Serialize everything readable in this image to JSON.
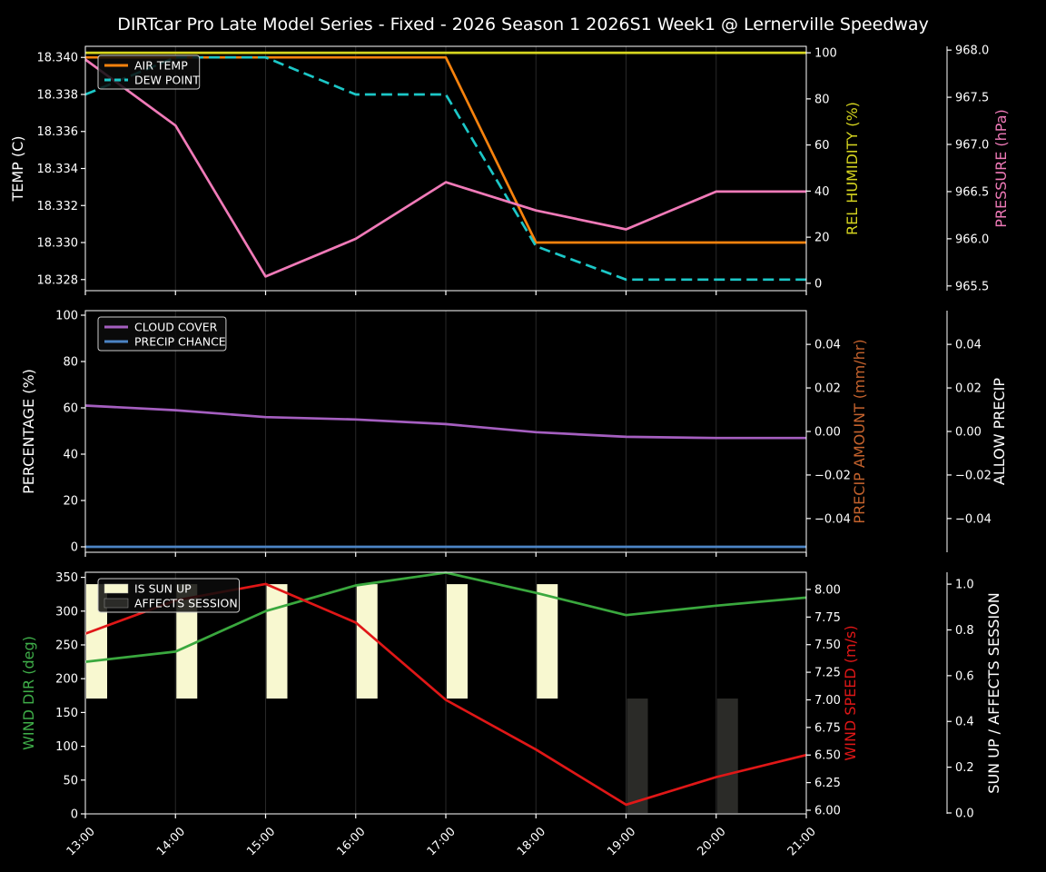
{
  "title": "DIRTcar Pro Late Model Series - Fixed - 2026 Season 1 2026S1 Week1 @ Lernerville Speedway",
  "colors": {
    "background": "#000000",
    "text": "#ffffff",
    "spine": "#ffffff",
    "grid": "#282828",
    "legend_bg": "rgba(12,12,12,0.85)",
    "legend_border": "#cccccc"
  },
  "x": {
    "hours": [
      13,
      14,
      15,
      16,
      17,
      18,
      19,
      20,
      21
    ],
    "tick_labels": [
      "13:00",
      "14:00",
      "15:00",
      "16:00",
      "17:00",
      "18:00",
      "19:00",
      "20:00",
      "21:00"
    ],
    "lim": [
      13,
      21
    ]
  },
  "chart_data": [
    {
      "id": "temperature-panel",
      "type": "line",
      "show_x_labels": false,
      "axes": {
        "left": {
          "label": "TEMP (C)",
          "label_color": "#ffffff",
          "lim": [
            18.3274,
            18.3406
          ],
          "ticks": [
            18.328,
            18.33,
            18.332,
            18.334,
            18.336,
            18.338,
            18.34
          ],
          "decimals": 3
        },
        "right": {
          "label": "REL HUMIDITY (%)",
          "label_color": "#d6d51f",
          "lim": [
            -3.2,
            102.8
          ],
          "ticks": [
            0,
            20,
            40,
            60,
            80,
            100
          ],
          "decimals": 0
        },
        "far": {
          "label": "PRESSURE (hPa)",
          "label_color": "#f07ab8",
          "lim": [
            965.45,
            968.04
          ],
          "ticks": [
            965.5,
            966.0,
            966.5,
            967.0,
            967.5,
            968.0
          ],
          "decimals": 1
        }
      },
      "series": [
        {
          "name": "AIR TEMP",
          "axis": "left",
          "color": "#f7820d",
          "dash": false,
          "visible": true,
          "values": [
            18.34,
            18.34,
            18.34,
            18.34,
            18.34,
            18.33,
            18.33,
            18.33,
            18.33
          ]
        },
        {
          "name": "DEW POINT",
          "axis": "left",
          "color": "#1cc7c7",
          "dash": true,
          "visible": true,
          "values": [
            18.338,
            18.34,
            18.34,
            18.338,
            18.338,
            18.3298,
            18.328,
            18.328,
            18.328
          ]
        },
        {
          "name": "REL HUMIDITY",
          "axis": "right",
          "color": "#d6d51f",
          "dash": false,
          "visible": true,
          "values": [
            100,
            100,
            100,
            100,
            100,
            100,
            100,
            100,
            100
          ]
        },
        {
          "name": "PRESSURE",
          "axis": "far",
          "color": "#f07ab8",
          "dash": false,
          "visible": true,
          "values": [
            967.9,
            967.2,
            965.6,
            966.0,
            966.6,
            966.3,
            966.1,
            966.5,
            966.5
          ]
        }
      ],
      "bars": [],
      "legend": [
        {
          "label": "AIR TEMP",
          "color": "#f7820d",
          "type": "line"
        },
        {
          "label": "DEW POINT",
          "color": "#1cc7c7",
          "type": "dash"
        }
      ]
    },
    {
      "id": "precipitation-panel",
      "type": "line",
      "show_x_labels": false,
      "axes": {
        "left": {
          "label": "PERCENTAGE (%)",
          "label_color": "#ffffff",
          "lim": [
            -2.35,
            101.96
          ],
          "ticks": [
            0,
            20,
            40,
            60,
            80,
            100
          ],
          "decimals": 0
        },
        "right": {
          "label": "PRECIP AMOUNT (mm/hr)",
          "label_color": "#c4622d",
          "lim": [
            -0.0555,
            0.0555
          ],
          "ticks": [
            0.04,
            0.02,
            0.0,
            -0.02,
            -0.04
          ],
          "decimals": 2
        },
        "far": {
          "label": "ALLOW PRECIP",
          "label_color": "#ffffff",
          "lim": [
            -0.0555,
            0.0555
          ],
          "ticks": [
            0.04,
            0.02,
            0.0,
            -0.02,
            -0.04
          ],
          "decimals": 2
        }
      },
      "series": [
        {
          "name": "CLOUD COVER",
          "axis": "left",
          "color": "#a55fc0",
          "dash": false,
          "visible": true,
          "values": [
            61,
            59,
            56,
            55,
            53,
            49.5,
            47.5,
            47,
            47
          ]
        },
        {
          "name": "PRECIP CHANCE",
          "axis": "left",
          "color": "#4c84c4",
          "dash": false,
          "visible": true,
          "values": [
            0,
            0,
            0,
            0,
            0,
            0,
            0,
            0,
            0
          ]
        },
        {
          "name": "PRECIP AMOUNT",
          "axis": "right",
          "color": "#c4622d",
          "dash": false,
          "visible": false,
          "values": [
            0,
            0,
            0,
            0,
            0,
            0,
            0,
            0,
            0
          ]
        },
        {
          "name": "ALLOW PRECIP",
          "axis": "far",
          "color": "#ffffff",
          "dash": false,
          "visible": false,
          "values": [
            0,
            0,
            0,
            0,
            0,
            0,
            0,
            0,
            0
          ]
        }
      ],
      "bars": [],
      "legend": [
        {
          "label": "CLOUD COVER",
          "color": "#a55fc0",
          "type": "line"
        },
        {
          "label": "PRECIP CHANCE",
          "color": "#4c84c4",
          "type": "line"
        }
      ]
    },
    {
      "id": "wind-panel",
      "type": "line+bar",
      "show_x_labels": true,
      "axes": {
        "left": {
          "label": "WIND DIR (deg)",
          "label_color": "#3fae49",
          "lim": [
            0,
            357.5
          ],
          "ticks": [
            0,
            50,
            100,
            150,
            200,
            250,
            300,
            350
          ],
          "decimals": 0
        },
        "right": {
          "label": "WIND SPEED (m/s)",
          "label_color": "#e01717",
          "lim": [
            5.967,
            8.156
          ],
          "ticks": [
            6.0,
            6.25,
            6.5,
            6.75,
            7.0,
            7.25,
            7.5,
            7.75,
            8.0
          ],
          "decimals": 2
        },
        "far": {
          "label": "SUN UP / AFFECTS SESSION",
          "label_color": "#ffffff",
          "lim": [
            -0.004,
            1.052
          ],
          "ticks": [
            0.0,
            0.2,
            0.4,
            0.6,
            0.8,
            1.0
          ],
          "decimals": 1
        }
      },
      "series": [
        {
          "name": "WIND DIR",
          "axis": "left",
          "color": "#3aa83e",
          "dash": false,
          "visible": true,
          "values": [
            225,
            240,
            300,
            338,
            357,
            327,
            294,
            308,
            320
          ]
        },
        {
          "name": "WIND SPEED",
          "axis": "right",
          "color": "#e01717",
          "dash": false,
          "visible": true,
          "values": [
            7.6,
            7.9,
            8.05,
            7.7,
            7.0,
            6.55,
            6.05,
            6.3,
            6.5
          ]
        }
      ],
      "bars": [
        {
          "name": "IS SUN UP",
          "axis": "far",
          "color": "#f8f8d0",
          "span": [
            0.5,
            1.0
          ],
          "values": [
            1,
            1,
            1,
            1,
            1,
            1,
            0,
            0,
            0
          ]
        },
        {
          "name": "AFFECTS SESSION",
          "axis": "far",
          "color": "#2b2b28",
          "span": [
            0.0,
            0.5
          ],
          "values": [
            0,
            0,
            0,
            0,
            0,
            0,
            1,
            1,
            0
          ]
        }
      ],
      "legend": [
        {
          "label": "IS SUN UP",
          "color": "#f8f8d0",
          "type": "patch"
        },
        {
          "label": "AFFECTS SESSION",
          "color": "#2b2b28",
          "type": "patch"
        }
      ]
    }
  ]
}
